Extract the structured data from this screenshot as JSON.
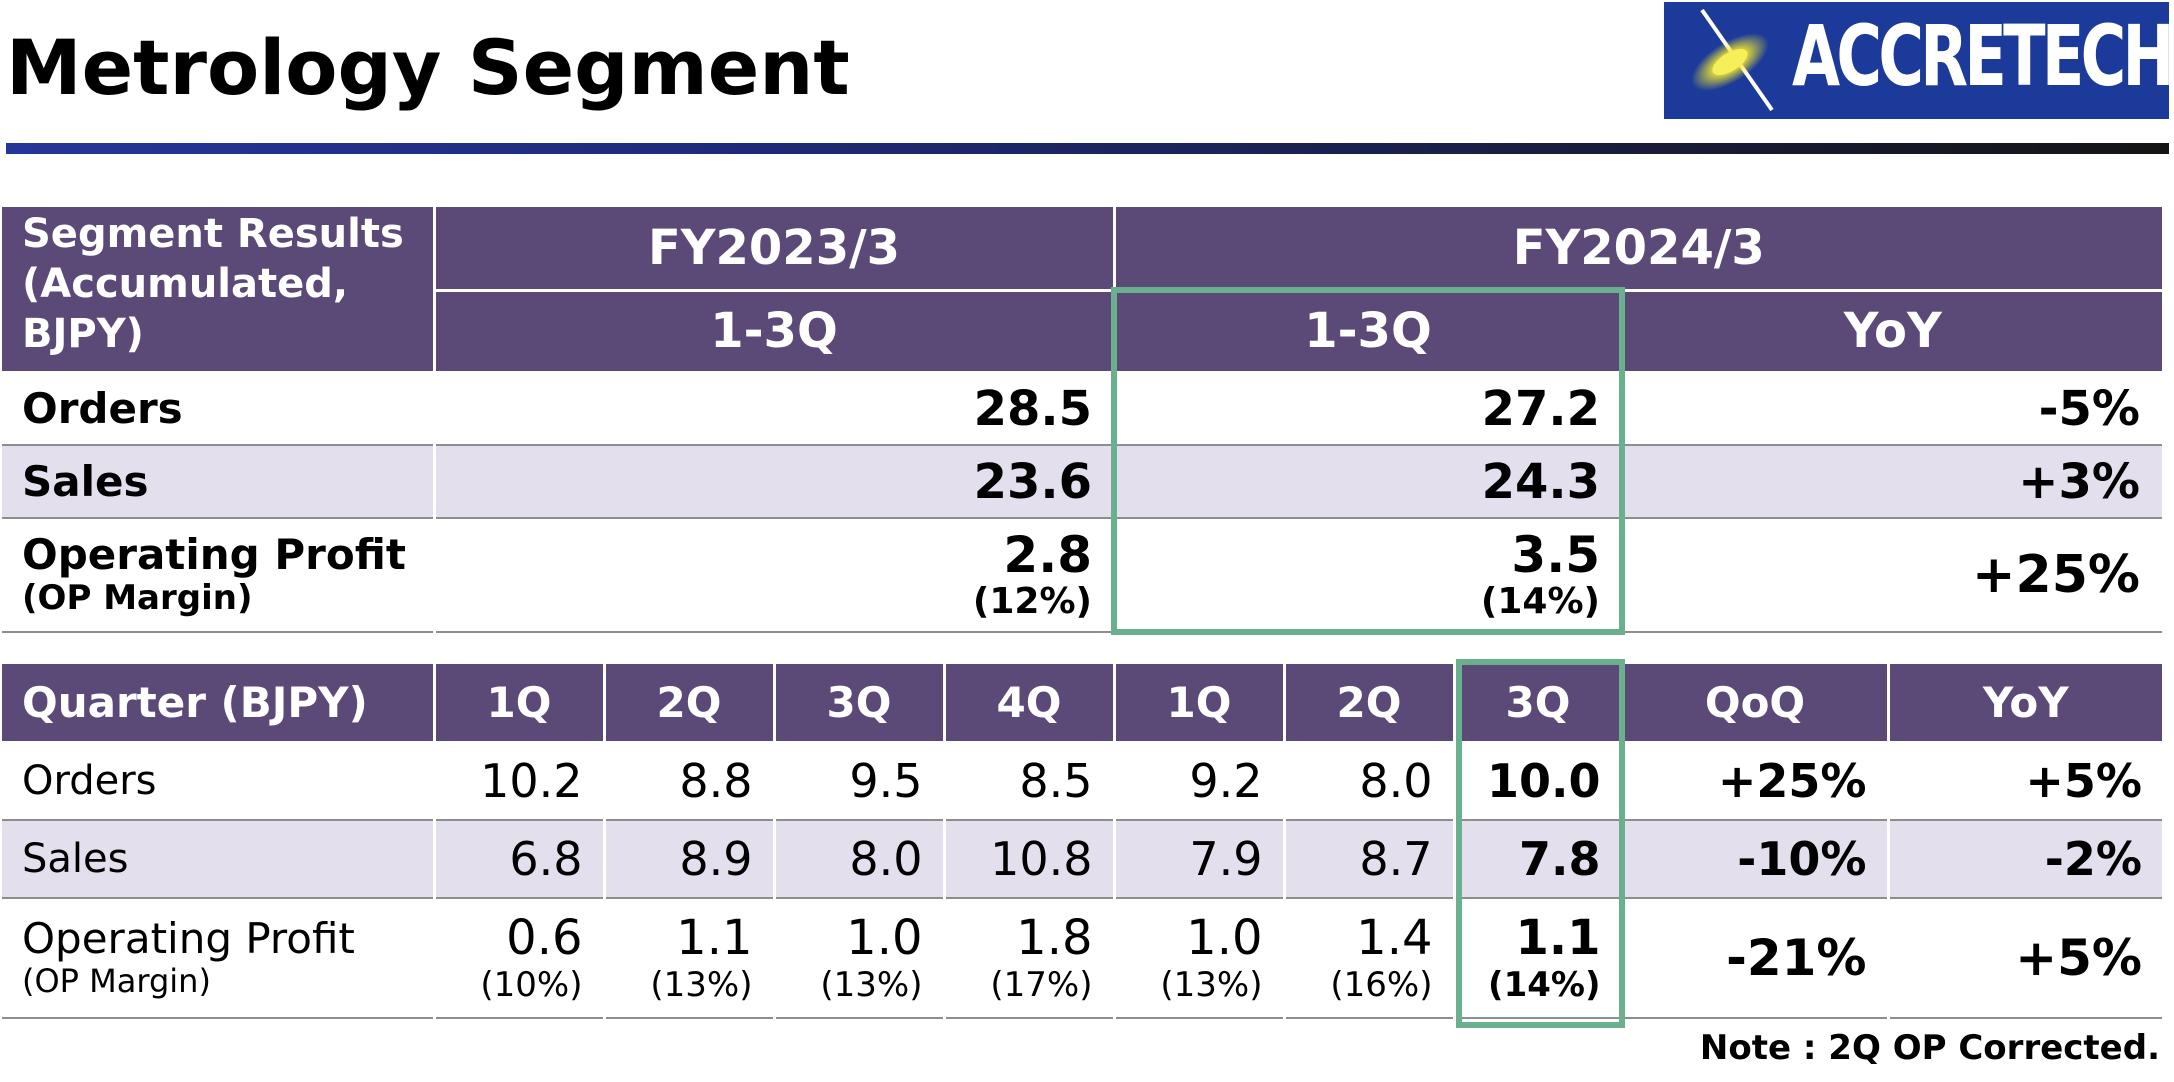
{
  "title": "Metrology Segment",
  "logo": {
    "text": "ACCRETECH",
    "colors": {
      "background": "#1c3a9a",
      "flare": "#f5ea2a",
      "text": "#ffffff"
    }
  },
  "colors": {
    "header": "#5b4a78",
    "shade": "#e3dfec",
    "highlight": "#6aaf8e",
    "rule": "#26359a"
  },
  "accumulated": {
    "header": "Segment Results (Accumulated, BJPY)",
    "fy_prev": "FY2023/3",
    "fy_curr": "FY2024/3",
    "prev_period": "1-3Q",
    "curr_period": "1-3Q",
    "yoy": "YoY",
    "rows": [
      {
        "label": "Orders",
        "prev": "28.5",
        "curr": "27.2",
        "yoy": "-5%"
      },
      {
        "label": "Sales",
        "prev": "23.6",
        "curr": "24.3",
        "yoy": "+3%"
      },
      {
        "label": "Operating Profit",
        "sublabel": "(OP Margin)",
        "prev": "2.8",
        "prev_margin": "(12%)",
        "curr": "3.5",
        "curr_margin": "(14%)",
        "yoy": "+25%"
      }
    ]
  },
  "quarterly": {
    "header": "Quarter (BJPY)",
    "columns": [
      "1Q",
      "2Q",
      "3Q",
      "4Q",
      "1Q",
      "2Q",
      "3Q",
      "QoQ",
      "YoY"
    ],
    "rows": [
      {
        "label": "Orders",
        "values": [
          "10.2",
          "8.8",
          "9.5",
          "8.5",
          "9.2",
          "8.0",
          "10.0"
        ],
        "qoq": "+25%",
        "yoy": "+5%"
      },
      {
        "label": "Sales",
        "values": [
          "6.8",
          "8.9",
          "8.0",
          "10.8",
          "7.9",
          "8.7",
          "7.8"
        ],
        "qoq": "-10%",
        "yoy": "-2%"
      },
      {
        "label": "Operating Profit",
        "sublabel": "(OP Margin)",
        "values": [
          "0.6",
          "1.1",
          "1.0",
          "1.8",
          "1.0",
          "1.4",
          "1.1"
        ],
        "margins": [
          "(10%)",
          "(13%)",
          "(13%)",
          "(17%)",
          "(13%)",
          "(16%)",
          "(14%)"
        ],
        "qoq": "-21%",
        "yoy": "+5%"
      }
    ]
  },
  "note": "Note :  2Q OP Corrected."
}
